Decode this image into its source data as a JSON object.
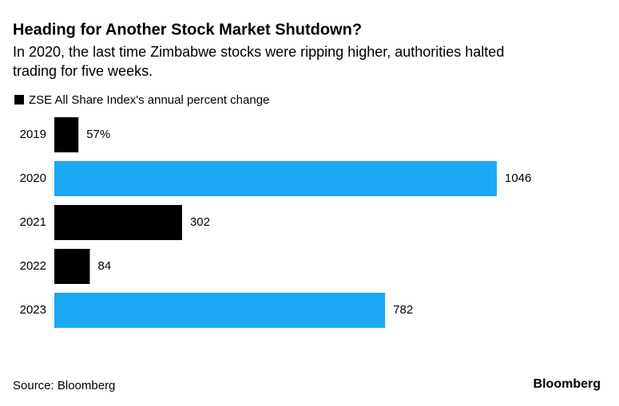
{
  "chart_data": {
    "type": "bar",
    "orientation": "horizontal",
    "title": "Heading for Another Stock Market Shutdown?",
    "subtitle": [
      "In 2020, the last time Zimbabwe stocks were ripping higher, authorities halted",
      "trading for five weeks."
    ],
    "categories": [
      "2019",
      "2020",
      "2021",
      "2022",
      "2023"
    ],
    "series": [
      {
        "name": "ZSE All Share Index's annual percent change",
        "color": "#000000",
        "values": [
          57,
          1046,
          302,
          84,
          782
        ],
        "value_labels": [
          "57%",
          "1046",
          "302",
          "84",
          "782"
        ],
        "colors": [
          "#000000",
          "#1aa8f5",
          "#000000",
          "#000000",
          "#1aa8f5"
        ]
      }
    ],
    "source": "Source: Bloomberg",
    "brand": "Bloomberg"
  }
}
